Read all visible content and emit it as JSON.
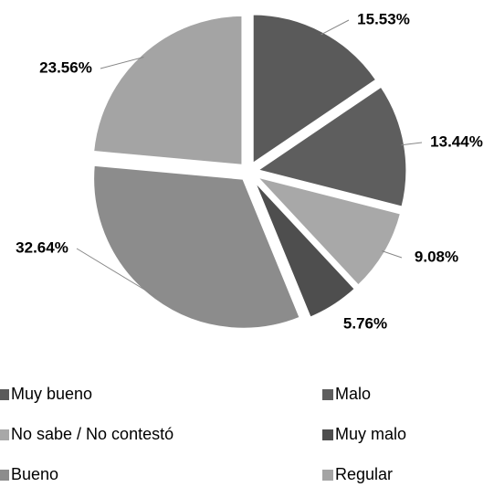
{
  "chart_data": {
    "type": "pie",
    "categories": [
      "Muy bueno",
      "Malo",
      "No sabe / No contestó",
      "Muy malo",
      "Bueno",
      "Regular"
    ],
    "values": [
      15.53,
      13.44,
      9.08,
      5.76,
      32.64,
      23.56
    ],
    "value_labels": [
      "15.53%",
      "13.44%",
      "9.08%",
      "5.76%",
      "32.64%",
      "23.56%"
    ],
    "colors": [
      "#5a5a5a",
      "#5e5e5e",
      "#a8a8a8",
      "#4e4e4e",
      "#8c8c8c",
      "#a4a4a4"
    ],
    "legend": "bottom"
  }
}
